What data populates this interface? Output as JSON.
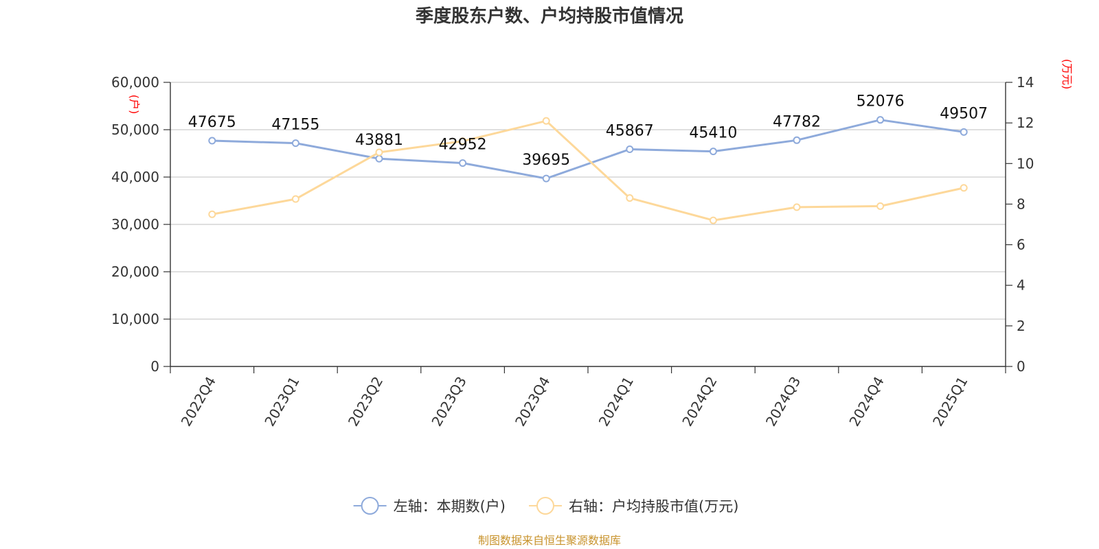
{
  "chart_data": {
    "type": "line",
    "title": "季度股东户数、户均持股市值情况",
    "categories": [
      "2022Q4",
      "2023Q1",
      "2023Q2",
      "2023Q3",
      "2023Q4",
      "2024Q1",
      "2024Q2",
      "2024Q3",
      "2024Q4",
      "2025Q1"
    ],
    "series": [
      {
        "name": "左轴：本期数(户)",
        "axis": "left",
        "color": "#8eaadb",
        "values": [
          47675,
          47155,
          43881,
          42952,
          39695,
          45867,
          45410,
          47782,
          52076,
          49507
        ],
        "data_labels": true
      },
      {
        "name": "右轴：户均持股市值(万元)",
        "axis": "right",
        "color": "#fdd89a",
        "values": [
          7.5,
          8.25,
          10.55,
          11.1,
          12.1,
          8.3,
          7.2,
          7.85,
          7.9,
          8.8
        ],
        "data_labels": false
      }
    ],
    "left_axis": {
      "unit": "(户)",
      "ylim": [
        0,
        60000
      ],
      "ticks": [
        0,
        10000,
        20000,
        30000,
        40000,
        50000,
        60000
      ],
      "tick_labels": [
        "0",
        "10,000",
        "20,000",
        "30,000",
        "40,000",
        "50,000",
        "60,000"
      ]
    },
    "right_axis": {
      "unit": "(万元)",
      "ylim": [
        0,
        14
      ],
      "ticks": [
        0,
        2,
        4,
        6,
        8,
        10,
        12,
        14
      ],
      "tick_labels": [
        "0",
        "2",
        "4",
        "6",
        "8",
        "10",
        "12",
        "14"
      ]
    },
    "grid": true,
    "legend_position": "bottom",
    "source": "制图数据来自恒生聚源数据库"
  }
}
